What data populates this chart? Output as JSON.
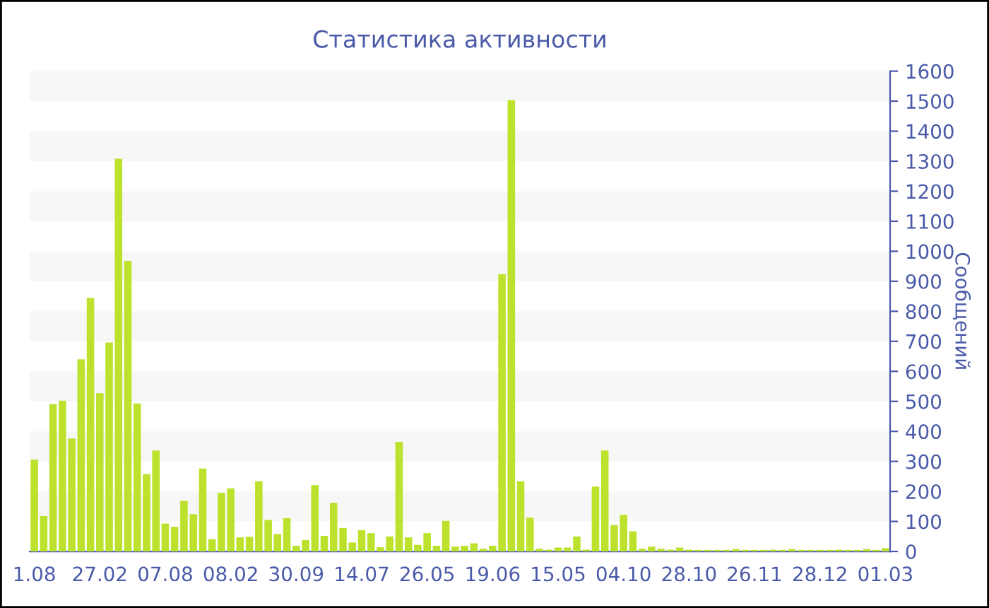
{
  "chart_data": {
    "type": "bar",
    "title": "Статистика активности",
    "ylabel": "Сообщений",
    "categories": [
      "1.08",
      null,
      null,
      null,
      null,
      null,
      null,
      "27.02",
      null,
      null,
      null,
      null,
      null,
      null,
      "07.08",
      null,
      null,
      null,
      null,
      null,
      null,
      "08.02",
      null,
      null,
      null,
      null,
      null,
      null,
      "30.09",
      null,
      null,
      null,
      null,
      null,
      null,
      "14.07",
      null,
      null,
      null,
      null,
      null,
      null,
      "26.05",
      null,
      null,
      null,
      null,
      null,
      null,
      "19.06",
      null,
      null,
      null,
      null,
      null,
      null,
      "15.05",
      null,
      null,
      null,
      null,
      null,
      null,
      "04.10",
      null,
      null,
      null,
      null,
      null,
      null,
      "28.10",
      null,
      null,
      null,
      null,
      null,
      null,
      "26.11",
      null,
      null,
      null,
      null,
      null,
      null,
      "28.12",
      null,
      null,
      null,
      null,
      null,
      null,
      "01.03"
    ],
    "values": [
      306,
      118,
      491,
      502,
      376,
      640,
      845,
      527,
      696,
      1308,
      968,
      493,
      258,
      336,
      93,
      82,
      169,
      124,
      276,
      41,
      195,
      210,
      47,
      49,
      234,
      105,
      58,
      111,
      19,
      38,
      221,
      52,
      162,
      78,
      30,
      71,
      61,
      14,
      50,
      365,
      47,
      22,
      61,
      19,
      102,
      16,
      19,
      27,
      9,
      19,
      924,
      1503,
      234,
      113,
      9,
      6,
      13,
      13,
      50,
      6,
      216,
      336,
      88,
      122,
      67,
      9,
      16,
      9,
      6,
      13,
      6,
      5,
      5,
      5,
      5,
      8,
      5,
      5,
      5,
      6,
      5,
      8,
      5,
      5,
      5,
      5,
      6,
      5,
      5,
      8,
      5,
      11
    ],
    "color": "#bde22e",
    "ylim": [
      0,
      1600
    ],
    "yticks": [
      0,
      100,
      200,
      300,
      400,
      500,
      600,
      700,
      800,
      900,
      1000,
      1100,
      1200,
      1300,
      1400,
      1500,
      1600
    ],
    "bands": [
      {
        "axis": "y",
        "from": 100,
        "to": 200,
        "color": "#f7f7f7"
      },
      {
        "axis": "y",
        "from": 300,
        "to": 400,
        "color": "#f7f7f7"
      },
      {
        "axis": "y",
        "from": 500,
        "to": 600,
        "color": "#f7f7f7"
      },
      {
        "axis": "y",
        "from": 700,
        "to": 800,
        "color": "#f7f7f7"
      },
      {
        "axis": "y",
        "from": 900,
        "to": 1000,
        "color": "#f7f7f7"
      },
      {
        "axis": "y",
        "from": 1100,
        "to": 1200,
        "color": "#f7f7f7"
      },
      {
        "axis": "y",
        "from": 1300,
        "to": 1400,
        "color": "#f7f7f7"
      },
      {
        "axis": "y",
        "from": 1500,
        "to": 1600,
        "color": "#f7f7f7"
      }
    ]
  }
}
